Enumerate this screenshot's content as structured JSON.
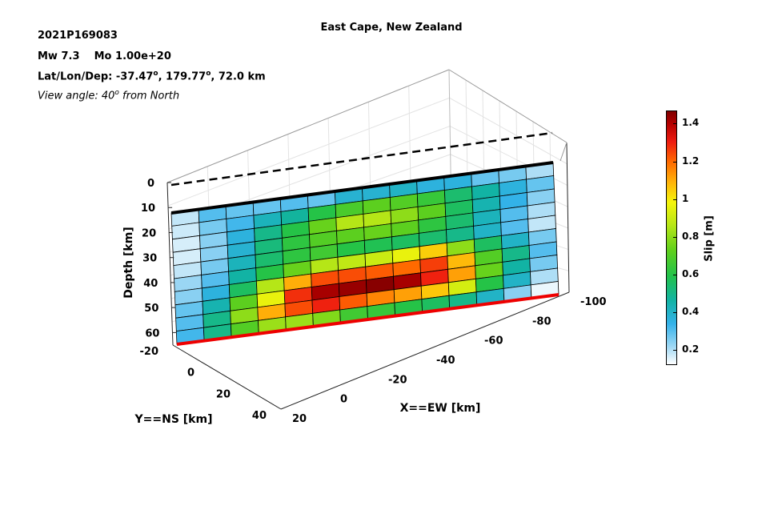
{
  "header": {
    "event_id": "2021P169083",
    "magnitude": "Mw 7.3",
    "moment": "Mo 1.00e+20",
    "location_prefix": "Lat/Lon/Dep: ",
    "lat": "-37.47",
    "lon": "179.77",
    "depth": "72.0 km",
    "deg": "o",
    "view_prefix": "View angle:  40",
    "view_suffix": " from North"
  },
  "colorbar": {
    "label": "Slip [m]",
    "ticks": [
      "0.2",
      "0.4",
      "0.6",
      "0.8",
      "1",
      "1.2",
      "1.4"
    ],
    "tick_values": [
      0.2,
      0.4,
      0.6,
      0.8,
      1.0,
      1.2,
      1.4
    ],
    "range": [
      0.12,
      1.47
    ]
  },
  "chart_data": {
    "type": "heatmap",
    "title": "East Cape, New Zealand",
    "xlabel": "X==EW [km]",
    "ylabel": "Y==NS [km]",
    "zlabel": "Depth [km]",
    "x_ticks": [
      "20",
      "0",
      "-20",
      "-40",
      "-60",
      "-80",
      "-100"
    ],
    "y_ticks": [
      "-20",
      "0",
      "20",
      "40"
    ],
    "z_ticks": [
      "0",
      "10",
      "20",
      "30",
      "40",
      "50",
      "60"
    ],
    "xlim": [
      20,
      -100
    ],
    "ylim": [
      -20,
      40
    ],
    "zlim": [
      0,
      65
    ],
    "fault_columns": 14,
    "fault_rows": 10,
    "slip": [
      [
        0.18,
        0.3,
        0.28,
        0.28,
        0.3,
        0.28,
        0.38,
        0.38,
        0.4,
        0.36,
        0.36,
        0.28,
        0.26,
        0.2
      ],
      [
        0.17,
        0.26,
        0.32,
        0.42,
        0.47,
        0.6,
        0.68,
        0.72,
        0.7,
        0.64,
        0.54,
        0.46,
        0.36,
        0.28
      ],
      [
        0.16,
        0.24,
        0.36,
        0.5,
        0.6,
        0.74,
        0.86,
        0.86,
        0.8,
        0.72,
        0.56,
        0.44,
        0.34,
        0.24
      ],
      [
        0.16,
        0.24,
        0.38,
        0.52,
        0.62,
        0.7,
        0.72,
        0.74,
        0.72,
        0.62,
        0.54,
        0.42,
        0.3,
        0.2
      ],
      [
        0.18,
        0.26,
        0.42,
        0.54,
        0.62,
        0.66,
        0.6,
        0.58,
        0.56,
        0.54,
        0.5,
        0.4,
        0.3,
        0.18
      ],
      [
        0.22,
        0.3,
        0.46,
        0.6,
        0.74,
        0.86,
        0.88,
        0.9,
        0.96,
        1.05,
        0.8,
        0.56,
        0.4,
        0.26
      ],
      [
        0.24,
        0.36,
        0.56,
        0.86,
        1.1,
        1.24,
        1.24,
        1.22,
        1.2,
        1.26,
        1.08,
        0.7,
        0.5,
        0.3
      ],
      [
        0.28,
        0.44,
        0.72,
        0.96,
        1.28,
        1.42,
        1.44,
        1.46,
        1.42,
        1.3,
        1.12,
        0.74,
        0.46,
        0.26
      ],
      [
        0.3,
        0.5,
        0.8,
        1.1,
        1.24,
        1.3,
        1.22,
        1.16,
        1.12,
        1.06,
        0.92,
        0.6,
        0.4,
        0.2
      ],
      [
        0.32,
        0.5,
        0.7,
        0.82,
        0.82,
        0.78,
        0.66,
        0.64,
        0.6,
        0.56,
        0.5,
        0.4,
        0.24,
        0.14
      ]
    ]
  }
}
